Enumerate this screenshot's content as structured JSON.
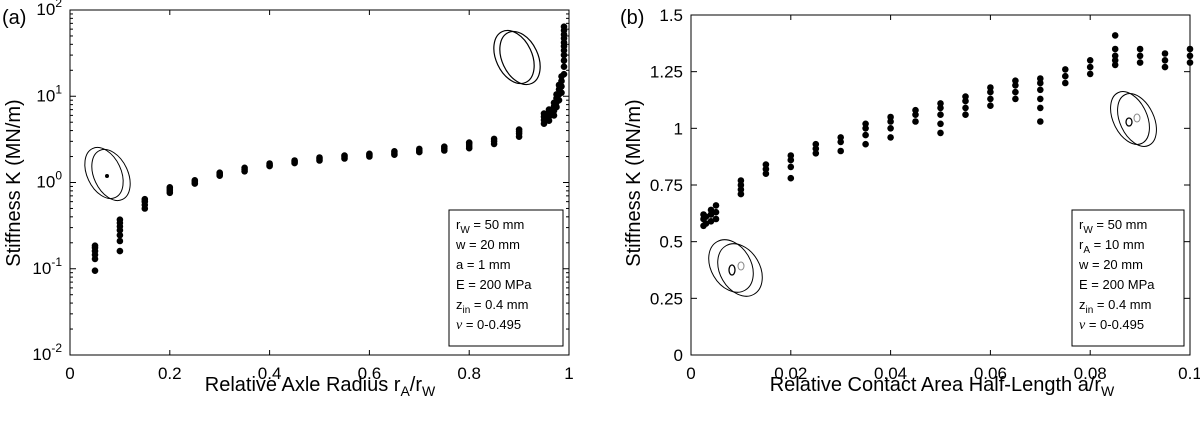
{
  "chart_data": [
    {
      "type": "scatter",
      "panel_label": "(a)",
      "xlabel": "Relative Axle Radius",
      "xlabel_math": {
        "r": "r",
        "sub_a": "A",
        "slash": "/r",
        "sub_b": "W"
      },
      "ylabel": "Stiffness K (MN/m)",
      "yscale": "log",
      "xlim": [
        0,
        1
      ],
      "ylim": [
        0.01,
        100
      ],
      "xticks": [
        "0",
        "0.2",
        "0.4",
        "0.6",
        "0.8",
        "1"
      ],
      "yticks": [
        {
          "base": "10",
          "exp": "-2"
        },
        {
          "base": "10",
          "exp": "-1"
        },
        {
          "base": "10",
          "exp": "0"
        },
        {
          "base": "10",
          "exp": "1"
        },
        {
          "base": "10",
          "exp": "2"
        }
      ],
      "legend": {
        "lines": [
          {
            "main": "r",
            "sub": "W",
            "rest": " = 50 mm"
          },
          {
            "main": "w = 20 mm",
            "sub": "",
            "rest": ""
          },
          {
            "main": "a = 1 mm",
            "sub": "",
            "rest": ""
          },
          {
            "main": "E = 200 MPa",
            "sub": "",
            "rest": ""
          },
          {
            "main": "z",
            "sub": "in",
            "rest": " = 0.4 mm"
          },
          {
            "main": "ν",
            "sub": "",
            "rest": " = 0-0.495"
          }
        ]
      },
      "points": [
        [
          0.05,
          0.095
        ],
        [
          0.05,
          0.13
        ],
        [
          0.05,
          0.145
        ],
        [
          0.05,
          0.16
        ],
        [
          0.05,
          0.175
        ],
        [
          0.05,
          0.185
        ],
        [
          0.1,
          0.16
        ],
        [
          0.1,
          0.21
        ],
        [
          0.1,
          0.245
        ],
        [
          0.1,
          0.28
        ],
        [
          0.1,
          0.31
        ],
        [
          0.1,
          0.34
        ],
        [
          0.1,
          0.37
        ],
        [
          0.15,
          0.5
        ],
        [
          0.15,
          0.55
        ],
        [
          0.15,
          0.6
        ],
        [
          0.15,
          0.64
        ],
        [
          0.2,
          0.76
        ],
        [
          0.2,
          0.8
        ],
        [
          0.2,
          0.84
        ],
        [
          0.2,
          0.88
        ],
        [
          0.25,
          0.97
        ],
        [
          0.25,
          1.02
        ],
        [
          0.25,
          1.06
        ],
        [
          0.3,
          1.2
        ],
        [
          0.3,
          1.25
        ],
        [
          0.3,
          1.3
        ],
        [
          0.35,
          1.35
        ],
        [
          0.35,
          1.42
        ],
        [
          0.35,
          1.48
        ],
        [
          0.4,
          1.55
        ],
        [
          0.4,
          1.6
        ],
        [
          0.4,
          1.66
        ],
        [
          0.45,
          1.68
        ],
        [
          0.45,
          1.75
        ],
        [
          0.45,
          1.8
        ],
        [
          0.5,
          1.8
        ],
        [
          0.5,
          1.88
        ],
        [
          0.5,
          1.95
        ],
        [
          0.55,
          1.9
        ],
        [
          0.55,
          1.98
        ],
        [
          0.55,
          2.05
        ],
        [
          0.6,
          2.0
        ],
        [
          0.6,
          2.08
        ],
        [
          0.6,
          2.15
        ],
        [
          0.65,
          2.1
        ],
        [
          0.65,
          2.2
        ],
        [
          0.65,
          2.3
        ],
        [
          0.7,
          2.25
        ],
        [
          0.7,
          2.35
        ],
        [
          0.7,
          2.45
        ],
        [
          0.75,
          2.35
        ],
        [
          0.75,
          2.48
        ],
        [
          0.75,
          2.6
        ],
        [
          0.8,
          2.5
        ],
        [
          0.8,
          2.65
        ],
        [
          0.8,
          2.8
        ],
        [
          0.8,
          2.9
        ],
        [
          0.85,
          2.8
        ],
        [
          0.85,
          3.0
        ],
        [
          0.85,
          3.2
        ],
        [
          0.9,
          3.4
        ],
        [
          0.9,
          3.7
        ],
        [
          0.9,
          3.9
        ],
        [
          0.9,
          4.1
        ],
        [
          0.95,
          4.8
        ],
        [
          0.95,
          5.3
        ],
        [
          0.95,
          5.8
        ],
        [
          0.95,
          6.3
        ],
        [
          0.96,
          5.2
        ],
        [
          0.96,
          5.8
        ],
        [
          0.96,
          6.5
        ],
        [
          0.96,
          7.0
        ],
        [
          0.97,
          6.0
        ],
        [
          0.97,
          6.8
        ],
        [
          0.97,
          7.6
        ],
        [
          0.97,
          8.4
        ],
        [
          0.975,
          7.5
        ],
        [
          0.975,
          8.5
        ],
        [
          0.975,
          9.5
        ],
        [
          0.975,
          10.5
        ],
        [
          0.98,
          9.0
        ],
        [
          0.98,
          10.5
        ],
        [
          0.98,
          12
        ],
        [
          0.98,
          13.5
        ],
        [
          0.985,
          11
        ],
        [
          0.985,
          13
        ],
        [
          0.985,
          15
        ],
        [
          0.985,
          17
        ],
        [
          0.99,
          18
        ],
        [
          0.99,
          22
        ],
        [
          0.99,
          26
        ],
        [
          0.99,
          30
        ],
        [
          0.99,
          34
        ],
        [
          0.99,
          38
        ],
        [
          0.99,
          42
        ],
        [
          0.99,
          47
        ],
        [
          0.99,
          52
        ],
        [
          0.99,
          58
        ],
        [
          0.99,
          64
        ]
      ]
    },
    {
      "type": "scatter",
      "panel_label": "(b)",
      "xlabel": "Relative Contact Area Half-Length",
      "xlabel_math": {
        "r": "a",
        "sub_a": "",
        "slash": "/r",
        "sub_b": "W"
      },
      "ylabel": "Stiffness K (MN/m)",
      "yscale": "linear",
      "xlim": [
        0,
        0.1
      ],
      "ylim": [
        0,
        1.5
      ],
      "xticks": [
        "0",
        "0.02",
        "0.04",
        "0.06",
        "0.08",
        "0.1"
      ],
      "yticks": [
        "0",
        "0.25",
        "0.5",
        "0.75",
        "1",
        "1.25",
        "1.5"
      ],
      "legend": {
        "lines": [
          {
            "main": "r",
            "sub": "W",
            "rest": " = 50 mm"
          },
          {
            "main": "r",
            "sub": "A",
            "rest": " = 10 mm"
          },
          {
            "main": "w = 20 mm",
            "sub": "",
            "rest": ""
          },
          {
            "main": "E = 200 MPa",
            "sub": "",
            "rest": ""
          },
          {
            "main": "z",
            "sub": "in",
            "rest": " = 0.4 mm"
          },
          {
            "main": "ν",
            "sub": "",
            "rest": " = 0-0.495"
          }
        ]
      },
      "points": [
        [
          0.0025,
          0.57
        ],
        [
          0.0025,
          0.6
        ],
        [
          0.0025,
          0.62
        ],
        [
          0.003,
          0.58
        ],
        [
          0.003,
          0.61
        ],
        [
          0.004,
          0.59
        ],
        [
          0.004,
          0.62
        ],
        [
          0.004,
          0.64
        ],
        [
          0.005,
          0.6
        ],
        [
          0.005,
          0.63
        ],
        [
          0.005,
          0.66
        ],
        [
          0.01,
          0.71
        ],
        [
          0.01,
          0.73
        ],
        [
          0.01,
          0.75
        ],
        [
          0.01,
          0.77
        ],
        [
          0.015,
          0.8
        ],
        [
          0.015,
          0.82
        ],
        [
          0.015,
          0.84
        ],
        [
          0.02,
          0.78
        ],
        [
          0.02,
          0.83
        ],
        [
          0.02,
          0.86
        ],
        [
          0.02,
          0.88
        ],
        [
          0.025,
          0.89
        ],
        [
          0.025,
          0.91
        ],
        [
          0.025,
          0.93
        ],
        [
          0.03,
          0.9
        ],
        [
          0.03,
          0.94
        ],
        [
          0.03,
          0.96
        ],
        [
          0.035,
          0.93
        ],
        [
          0.035,
          0.97
        ],
        [
          0.035,
          1.0
        ],
        [
          0.035,
          1.02
        ],
        [
          0.04,
          0.96
        ],
        [
          0.04,
          1.0
        ],
        [
          0.04,
          1.03
        ],
        [
          0.04,
          1.05
        ],
        [
          0.045,
          1.03
        ],
        [
          0.045,
          1.06
        ],
        [
          0.045,
          1.08
        ],
        [
          0.05,
          0.98
        ],
        [
          0.05,
          1.02
        ],
        [
          0.05,
          1.06
        ],
        [
          0.05,
          1.09
        ],
        [
          0.05,
          1.11
        ],
        [
          0.055,
          1.06
        ],
        [
          0.055,
          1.09
        ],
        [
          0.055,
          1.12
        ],
        [
          0.055,
          1.14
        ],
        [
          0.06,
          1.1
        ],
        [
          0.06,
          1.13
        ],
        [
          0.06,
          1.16
        ],
        [
          0.06,
          1.18
        ],
        [
          0.065,
          1.13
        ],
        [
          0.065,
          1.16
        ],
        [
          0.065,
          1.19
        ],
        [
          0.065,
          1.21
        ],
        [
          0.07,
          1.03
        ],
        [
          0.07,
          1.09
        ],
        [
          0.07,
          1.13
        ],
        [
          0.07,
          1.17
        ],
        [
          0.07,
          1.2
        ],
        [
          0.07,
          1.22
        ],
        [
          0.075,
          1.2
        ],
        [
          0.075,
          1.23
        ],
        [
          0.075,
          1.26
        ],
        [
          0.08,
          1.24
        ],
        [
          0.08,
          1.27
        ],
        [
          0.08,
          1.3
        ],
        [
          0.085,
          1.28
        ],
        [
          0.085,
          1.3
        ],
        [
          0.085,
          1.32
        ],
        [
          0.085,
          1.35
        ],
        [
          0.085,
          1.41
        ],
        [
          0.09,
          1.29
        ],
        [
          0.09,
          1.32
        ],
        [
          0.09,
          1.35
        ],
        [
          0.095,
          1.27
        ],
        [
          0.095,
          1.3
        ],
        [
          0.095,
          1.33
        ],
        [
          0.1,
          1.29
        ],
        [
          0.1,
          1.32
        ],
        [
          0.1,
          1.35
        ]
      ]
    }
  ]
}
